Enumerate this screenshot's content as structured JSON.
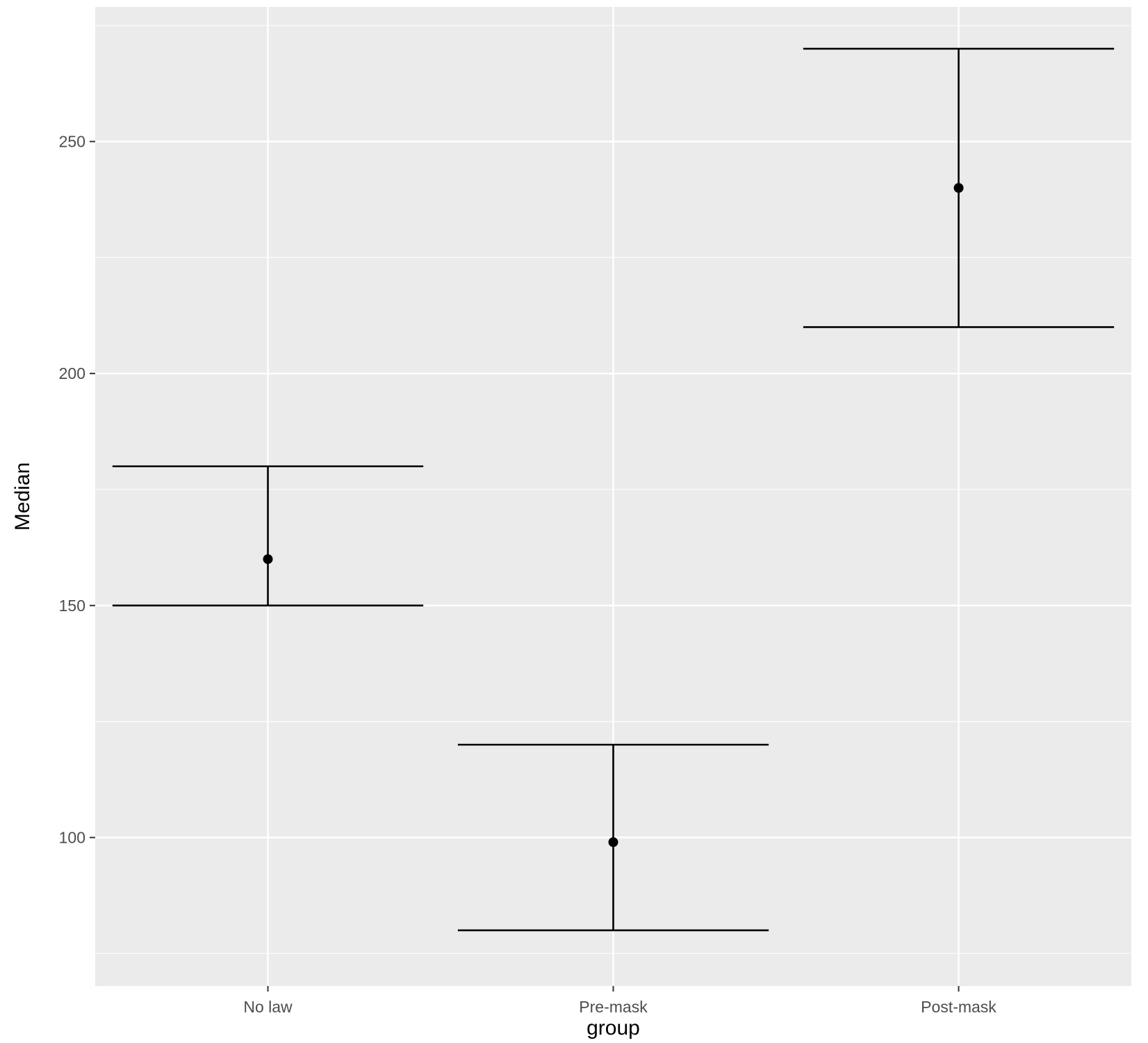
{
  "chart_data": {
    "type": "errorbar",
    "title": "",
    "xlabel": "group",
    "ylabel": "Median",
    "categories": [
      "No law",
      "Pre-mask",
      "Post-mask"
    ],
    "values": [
      160,
      99,
      240
    ],
    "lower": [
      150,
      80,
      210
    ],
    "upper": [
      180,
      120,
      270
    ],
    "ylim": [
      68,
      279
    ],
    "y_ticks": [
      100,
      150,
      200,
      250
    ],
    "y_tick_labels": [
      "100",
      "150",
      "200",
      "250"
    ],
    "grid": true,
    "legend": "none",
    "colors": {
      "panel_background": "#ebebeb",
      "grid_major": "#ffffff",
      "grid_minor": "#f5f5f5",
      "marks": "#000000",
      "tick_text": "#4d4d4d",
      "axis_ticks": "#333333"
    }
  }
}
